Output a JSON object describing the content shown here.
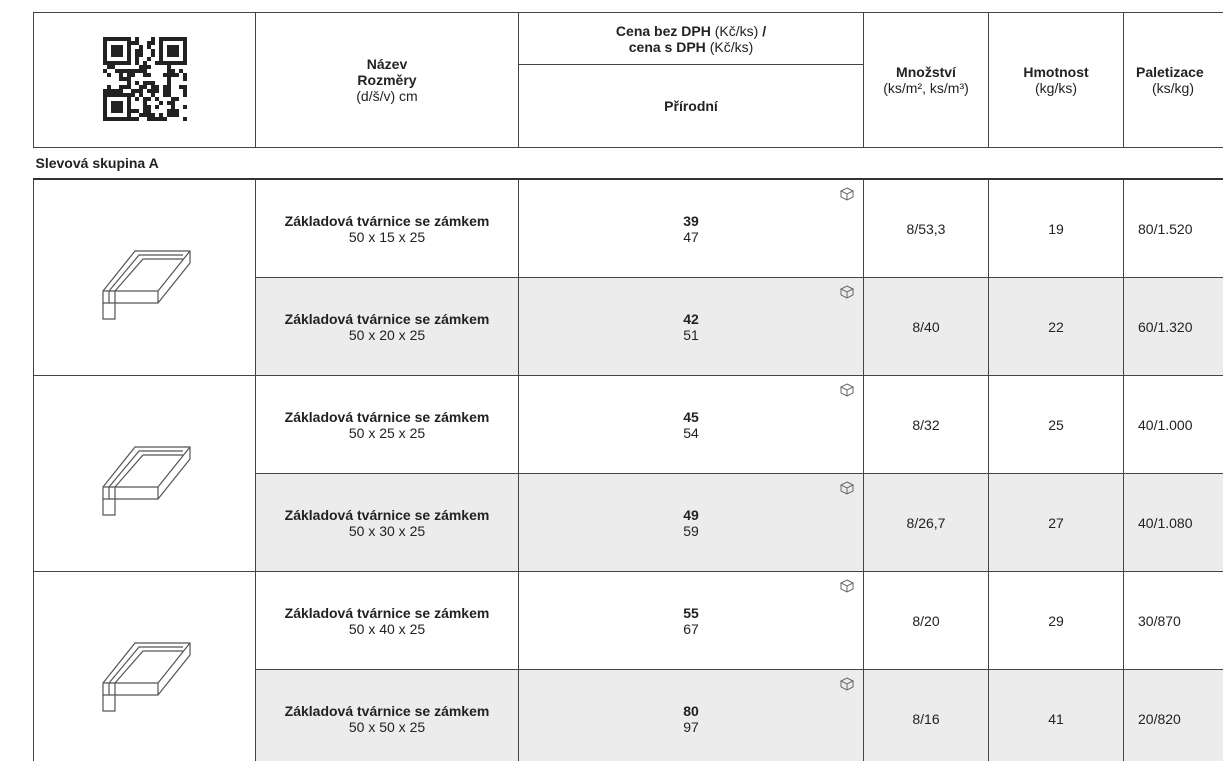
{
  "header": {
    "name": "Název",
    "dims": "Rozměry",
    "dims_unit": "(d/š/v) cm",
    "price_main": "Cena bez DPH",
    "price_main_unit": "(Kč/ks)",
    "price_slash": "/",
    "price_vat": "cena s DPH",
    "price_vat_unit": "(Kč/ks)",
    "price_variant": "Přírodní",
    "quantity": "Množství",
    "quantity_unit": "(ks/m², ks/m³)",
    "weight": "Hmotnost",
    "weight_unit": "(kg/ks)",
    "pallet": "Paletizace",
    "pallet_unit": "(ks/kg)"
  },
  "section": "Slevová skupina A",
  "rows": [
    {
      "name": "Základová tvárnice se zámkem",
      "dims": "50 x 15 x 25",
      "price": 39,
      "price_vat": 47,
      "quantity": "8/53,3",
      "weight": 19,
      "pallet": "80/1.520"
    },
    {
      "name": "Základová tvárnice se zámkem",
      "dims": "50 x 20 x 25",
      "price": 42,
      "price_vat": 51,
      "quantity": "8/40",
      "weight": 22,
      "pallet": "60/1.320"
    },
    {
      "name": "Základová tvárnice se zámkem",
      "dims": "50 x 25 x 25",
      "price": 45,
      "price_vat": 54,
      "quantity": "8/32",
      "weight": 25,
      "pallet": "40/1.000"
    },
    {
      "name": "Základová tvárnice se zámkem",
      "dims": "50 x 30 x 25",
      "price": 49,
      "price_vat": 59,
      "quantity": "8/26,7",
      "weight": 27,
      "pallet": "40/1.080"
    },
    {
      "name": "Základová tvárnice se zámkem",
      "dims": "50 x 40 x 25",
      "price": 55,
      "price_vat": 67,
      "quantity": "8/20",
      "weight": 29,
      "pallet": "30/870"
    },
    {
      "name": "Základová tvárnice se zámkem",
      "dims": "50 x 50 x 25",
      "price": 80,
      "price_vat": 97,
      "quantity": "8/16",
      "weight": 41,
      "pallet": "20/820"
    }
  ]
}
